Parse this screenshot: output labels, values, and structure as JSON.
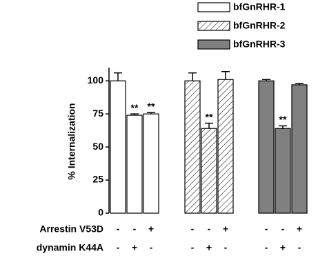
{
  "chart_data": {
    "type": "bar",
    "y_label": "% Internalization",
    "ylim": [
      0,
      110
    ],
    "yticks": [
      0,
      25,
      50,
      75,
      100
    ],
    "legend": "top-right",
    "series": [
      {
        "name": "bfGnRHR-1",
        "color": "#ffffff",
        "pattern": "solid",
        "values": [
          100,
          74,
          75
        ],
        "errors": [
          6,
          1,
          1
        ],
        "annotations": [
          null,
          "**",
          "**"
        ]
      },
      {
        "name": "bfGnRHR-2",
        "color": "#ffffff",
        "pattern": "hatch",
        "values": [
          100,
          64,
          101
        ],
        "errors": [
          6,
          4,
          6
        ],
        "annotations": [
          null,
          "**",
          null
        ]
      },
      {
        "name": "bfGnRHR-3",
        "color": "#808080",
        "pattern": "solid",
        "values": [
          100,
          64,
          97
        ],
        "errors": [
          1,
          2,
          1
        ],
        "annotations": [
          null,
          "**",
          null
        ]
      }
    ],
    "condition_rows": [
      {
        "label": "Arrestin V53D",
        "signs": [
          "-",
          "-",
          "+",
          "-",
          "-",
          "+",
          "-",
          "-",
          "+"
        ]
      },
      {
        "label": "dynamin K44A",
        "signs": [
          "-",
          "+",
          "-",
          "-",
          "+",
          "-",
          "-",
          "+",
          "-"
        ]
      }
    ]
  }
}
